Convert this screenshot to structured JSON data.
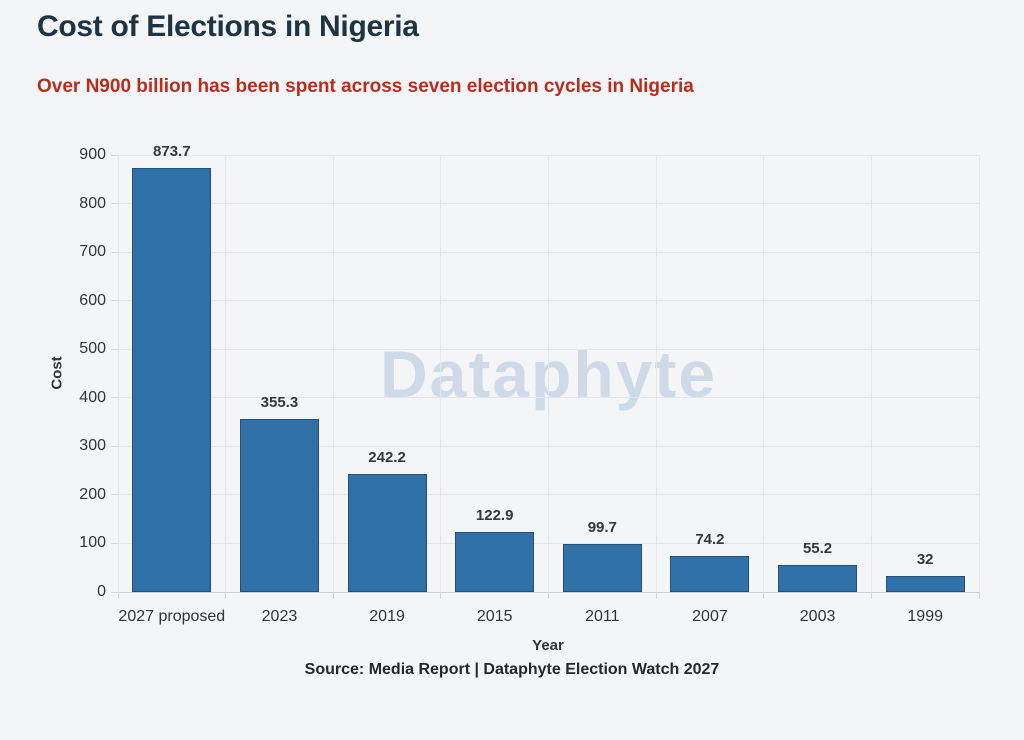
{
  "header": {
    "title": "Cost of Elections in Nigeria",
    "subtitle": "Over N900 billion has been spent across seven election cycles in Nigeria",
    "title_color": "#1e3343",
    "subtitle_color": "#b92d1c"
  },
  "chart_data": {
    "type": "bar",
    "title": "Cost of Elections in Nigeria",
    "subtitle": "Over N900 billion has been spent across seven election cycles in Nigeria",
    "categories": [
      "2027 proposed",
      "2023",
      "2019",
      "2015",
      "2011",
      "2007",
      "2003",
      "1999"
    ],
    "values": [
      873.7,
      355.3,
      242.2,
      122.9,
      99.7,
      74.2,
      55.2,
      32
    ],
    "value_labels": [
      "873.7",
      "355.3",
      "242.2",
      "122.9",
      "99.7",
      "74.2",
      "55.2",
      "32"
    ],
    "xlabel": "Year",
    "ylabel": "Cost",
    "ylim": [
      0,
      900
    ],
    "ytick_step": 100,
    "yticks": [
      0,
      100,
      200,
      300,
      400,
      500,
      600,
      700,
      800,
      900
    ],
    "grid": true,
    "legend": "none",
    "bar_color": "#2f70a8",
    "watermark": "Dataphyte",
    "watermark_color": "#b7cbdf",
    "source": "Source: Media Report | Dataphyte Election Watch 2027"
  }
}
